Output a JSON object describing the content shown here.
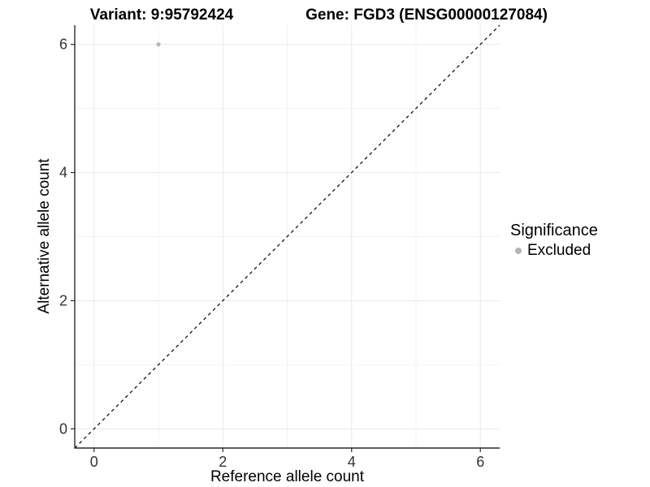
{
  "header": {
    "title_left": "Variant: 9:95792424",
    "title_right": "Gene: FGD3 (ENSG00000127084)"
  },
  "chart_data": {
    "type": "scatter",
    "title_left": "Variant: 9:95792424",
    "title_right": "Gene: FGD3 (ENSG00000127084)",
    "xlabel": "Reference allele count",
    "ylabel": "Alternative allele count",
    "xlim": [
      -0.3,
      6.3
    ],
    "ylim": [
      -0.3,
      6.3
    ],
    "x_ticks": [
      0,
      2,
      4,
      6
    ],
    "y_ticks": [
      0,
      2,
      4,
      6
    ],
    "x_minor_ticks": [
      1,
      3,
      5
    ],
    "y_minor_ticks": [
      1,
      3,
      5
    ],
    "grid": true,
    "points": [
      {
        "x": 1,
        "y": 6,
        "series": "Excluded"
      }
    ],
    "reference_line": {
      "slope": 1,
      "intercept": 0,
      "style": "dashed",
      "color": "#000000"
    },
    "legend": {
      "title": "Significance",
      "position": "right",
      "items": [
        {
          "label": "Excluded",
          "marker": "circle",
          "color": "#b5b5b5"
        }
      ]
    },
    "colors": {
      "point": "#b5b5b5",
      "grid_major": "#e8e8e8",
      "grid_minor": "#f3f3f3",
      "axis_line": "#2a2a2a",
      "tick_mark": "#2a2a2a",
      "tick_label": "#333333"
    }
  }
}
